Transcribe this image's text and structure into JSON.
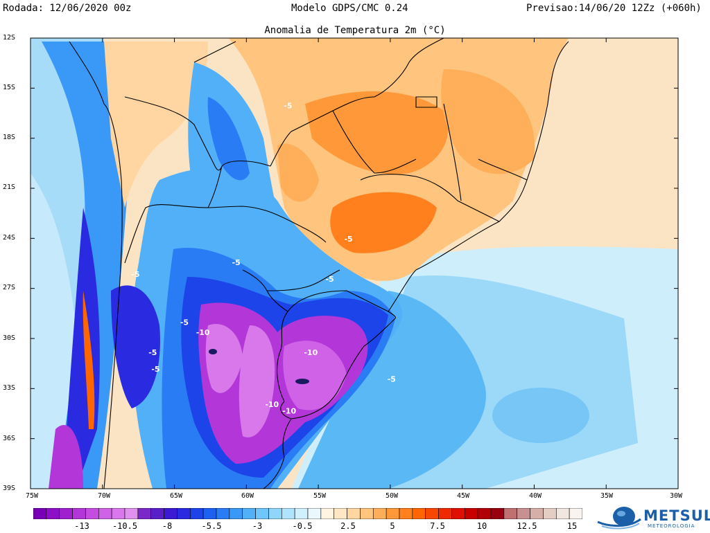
{
  "header": {
    "run": "Rodada: 12/06/2020 00z",
    "model": "Modelo GDPS/CMC 0.24",
    "forecast": "Previsao:14/06/20 12Zz (+060h)",
    "title": "Anomalia de Temperatura 2m (°C)"
  },
  "axes": {
    "latitudes": [
      "12S",
      "15S",
      "18S",
      "21S",
      "24S",
      "27S",
      "30S",
      "33S",
      "36S",
      "39S"
    ],
    "longitudes": [
      "75W",
      "70W",
      "65W",
      "60W",
      "55W",
      "50W",
      "45W",
      "40W",
      "35W",
      "30W"
    ]
  },
  "contour_labels": [
    {
      "text": "-5",
      "lon": -57.4,
      "lat": -16.2
    },
    {
      "text": "-5",
      "lon": -61.0,
      "lat": -25.6
    },
    {
      "text": "-5",
      "lon": -64.6,
      "lat": -29.2
    },
    {
      "text": "-5",
      "lon": -68.0,
      "lat": -26.3
    },
    {
      "text": "-5",
      "lon": -66.8,
      "lat": -31.0
    },
    {
      "text": "-5",
      "lon": -66.6,
      "lat": -32.0
    },
    {
      "text": "-5",
      "lon": -54.5,
      "lat": -26.6
    },
    {
      "text": "-5",
      "lon": -50.2,
      "lat": -32.6
    },
    {
      "text": "-5",
      "lon": -53.2,
      "lat": -24.2
    },
    {
      "text": "-10",
      "lon": -63.5,
      "lat": -29.8
    },
    {
      "text": "-10",
      "lon": -56.0,
      "lat": -31.0
    },
    {
      "text": "-10",
      "lon": -58.7,
      "lat": -34.1
    },
    {
      "text": "-10",
      "lon": -57.5,
      "lat": -34.5
    }
  ],
  "colorbar": {
    "labels": [
      "-13",
      "-10.5",
      "-8",
      "-5.5",
      "-3",
      "-0.5",
      "2.5",
      "5",
      "7.5",
      "10",
      "12.5",
      "15"
    ],
    "colors": [
      "#7a00b8",
      "#8e10c6",
      "#a020d0",
      "#b236d8",
      "#c44ce0",
      "#cf62e6",
      "#d878ea",
      "#e090ee",
      "#7a28c8",
      "#5a20c8",
      "#3c1ad4",
      "#2a2ae0",
      "#1c44e8",
      "#1e60f0",
      "#2a7cf4",
      "#3a98f6",
      "#52b0f8",
      "#70c6fa",
      "#90d6fb",
      "#b0e4fc",
      "#d0f0fd",
      "#eaf8fe",
      "#fff4e2",
      "#ffe6c4",
      "#ffd6a2",
      "#ffc47e",
      "#ffae5a",
      "#ff9838",
      "#ff801c",
      "#ff6600",
      "#f84800",
      "#ee2a00",
      "#e01000",
      "#c80000",
      "#b00008",
      "#980010",
      "#c07070",
      "#c89090",
      "#d6b0a8",
      "#e4cec4",
      "#f2e6e0",
      "#faf4f0"
    ]
  },
  "brand": {
    "name": "METSUL",
    "tagline": "METEOROLOGIA"
  },
  "colors": {
    "brand": "#1b5fa8"
  }
}
